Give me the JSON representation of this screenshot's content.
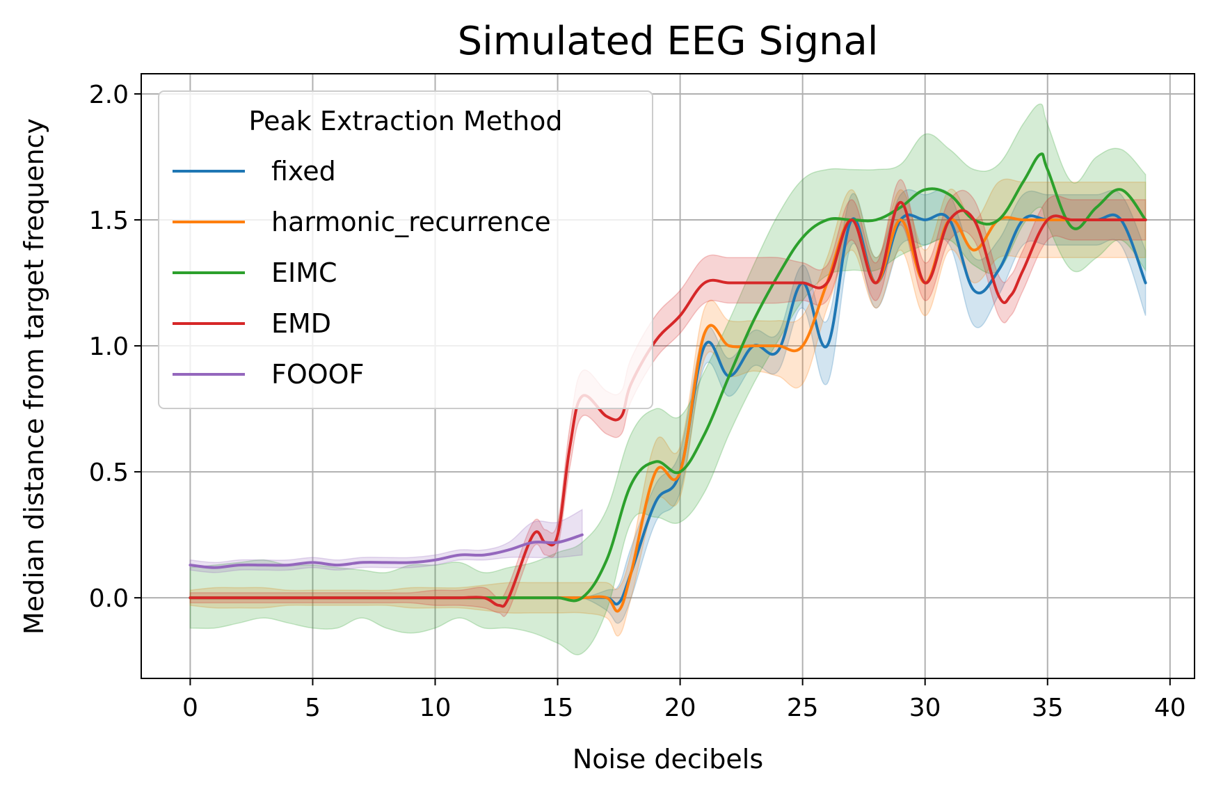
{
  "chart_data": {
    "type": "line",
    "title": "Simulated EEG Signal",
    "xlabel": "Noise decibels",
    "ylabel": "Median distance from target frequency",
    "xlim": [
      -2,
      41
    ],
    "ylim": [
      -0.32,
      2.08
    ],
    "xticks": [
      0,
      5,
      10,
      15,
      20,
      25,
      30,
      35,
      40
    ],
    "yticks": [
      0.0,
      0.5,
      1.0,
      1.5,
      2.0
    ],
    "xtick_labels": [
      "0",
      "5",
      "10",
      "15",
      "20",
      "25",
      "30",
      "35",
      "40"
    ],
    "ytick_labels": [
      "0.0",
      "0.5",
      "1.0",
      "1.5",
      "2.0"
    ],
    "grid": true,
    "legend": {
      "title": "Peak Extraction Method",
      "position": "upper-left"
    },
    "series": [
      {
        "name": "fixed",
        "color": "#1f77b4",
        "x": [
          0,
          1,
          2,
          3,
          4,
          5,
          6,
          7,
          8,
          9,
          10,
          11,
          12,
          13,
          14,
          15,
          16,
          17,
          17.5,
          18,
          19,
          20,
          21,
          22,
          23,
          24,
          25,
          26,
          27,
          28,
          29,
          30,
          31,
          32,
          33,
          34,
          35,
          36,
          37,
          38,
          39
        ],
        "y": [
          0,
          0,
          0,
          0,
          0,
          0,
          0,
          0,
          0,
          0,
          0,
          0,
          0,
          0,
          0,
          0,
          0,
          0,
          -0.02,
          0.1,
          0.38,
          0.5,
          1.0,
          0.88,
          1.0,
          0.98,
          1.25,
          1.0,
          1.5,
          1.25,
          1.5,
          1.5,
          1.5,
          1.22,
          1.3,
          1.5,
          1.5,
          1.5,
          1.5,
          1.5,
          1.25
        ],
        "lower": [
          0,
          0,
          0,
          0,
          0,
          0,
          0,
          0,
          0,
          0,
          0,
          0,
          0,
          0,
          0,
          0,
          0,
          -0.05,
          -0.1,
          0.0,
          0.3,
          0.42,
          0.92,
          0.8,
          0.92,
          0.9,
          1.15,
          0.85,
          1.4,
          1.15,
          1.4,
          1.4,
          1.4,
          1.08,
          1.2,
          1.4,
          1.4,
          1.4,
          1.4,
          1.4,
          1.12
        ],
        "upper": [
          0,
          0,
          0,
          0,
          0,
          0,
          0,
          0,
          0,
          0,
          0,
          0,
          0,
          0,
          0,
          0,
          0,
          0.03,
          0.05,
          0.2,
          0.45,
          0.58,
          1.06,
          0.95,
          1.06,
          1.05,
          1.32,
          1.1,
          1.6,
          1.35,
          1.6,
          1.6,
          1.6,
          1.35,
          1.42,
          1.6,
          1.6,
          1.6,
          1.6,
          1.6,
          1.38
        ]
      },
      {
        "name": "harmonic_recurrence",
        "color": "#ff7f0e",
        "x": [
          0,
          1,
          2,
          3,
          4,
          5,
          6,
          7,
          8,
          9,
          10,
          11,
          12,
          13,
          14,
          15,
          16,
          17,
          17.5,
          18,
          19,
          20,
          21,
          22,
          23,
          24,
          25,
          26,
          27,
          28,
          29,
          30,
          31,
          32,
          33,
          34,
          35,
          36,
          37,
          38,
          39
        ],
        "y": [
          0,
          0,
          0,
          0,
          0,
          0,
          0,
          0,
          0,
          0,
          0,
          0,
          0,
          0,
          0,
          0,
          0,
          0,
          -0.05,
          0.1,
          0.5,
          0.5,
          1.05,
          1.0,
          1.0,
          1.0,
          1.0,
          1.25,
          1.5,
          1.25,
          1.5,
          1.25,
          1.5,
          1.38,
          1.5,
          1.5,
          1.5,
          1.5,
          1.5,
          1.5,
          1.5
        ],
        "lower": [
          -0.03,
          -0.04,
          -0.04,
          -0.04,
          -0.03,
          -0.03,
          -0.03,
          -0.03,
          -0.03,
          -0.04,
          -0.04,
          -0.04,
          -0.05,
          -0.06,
          -0.06,
          -0.06,
          -0.06,
          -0.08,
          -0.15,
          0.0,
          0.38,
          0.4,
          0.95,
          0.88,
          0.9,
          0.88,
          0.85,
          1.15,
          1.38,
          1.15,
          1.38,
          1.12,
          1.38,
          1.25,
          1.35,
          1.35,
          1.35,
          1.35,
          1.35,
          1.35,
          1.35
        ],
        "upper": [
          0.03,
          0.04,
          0.04,
          0.04,
          0.03,
          0.03,
          0.03,
          0.03,
          0.03,
          0.04,
          0.04,
          0.04,
          0.05,
          0.06,
          0.06,
          0.06,
          0.06,
          0.06,
          0.04,
          0.18,
          0.62,
          0.6,
          1.15,
          1.1,
          1.1,
          1.1,
          1.12,
          1.35,
          1.62,
          1.35,
          1.62,
          1.38,
          1.62,
          1.5,
          1.65,
          1.65,
          1.65,
          1.65,
          1.65,
          1.65,
          1.65
        ]
      },
      {
        "name": "EIMC",
        "color": "#2ca02c",
        "x": [
          0,
          1,
          2,
          3,
          4,
          5,
          6,
          7,
          8,
          9,
          10,
          11,
          12,
          13,
          14,
          15,
          16,
          17,
          18,
          19,
          20,
          21,
          22,
          23,
          24,
          25,
          26,
          27,
          28,
          29,
          30,
          31,
          32,
          33,
          34,
          34.7,
          35,
          36,
          37,
          38,
          39
        ],
        "y": [
          0,
          0,
          0,
          0,
          0,
          0,
          0,
          0,
          0,
          0,
          0,
          0,
          0,
          0,
          0,
          0,
          0,
          0.15,
          0.45,
          0.54,
          0.5,
          0.65,
          0.88,
          1.1,
          1.28,
          1.43,
          1.5,
          1.5,
          1.5,
          1.55,
          1.62,
          1.6,
          1.5,
          1.5,
          1.65,
          1.76,
          1.7,
          1.47,
          1.55,
          1.62,
          1.5
        ],
        "lower": [
          -0.12,
          -0.12,
          -0.1,
          -0.08,
          -0.1,
          -0.12,
          -0.12,
          -0.08,
          -0.12,
          -0.14,
          -0.12,
          -0.08,
          -0.12,
          -0.12,
          -0.14,
          -0.18,
          -0.22,
          -0.05,
          0.3,
          0.32,
          0.3,
          0.42,
          0.65,
          0.85,
          1.02,
          1.18,
          1.28,
          1.3,
          1.3,
          1.36,
          1.4,
          1.42,
          1.32,
          1.3,
          1.48,
          1.55,
          1.48,
          1.3,
          1.35,
          1.42,
          1.3
        ],
        "upper": [
          0.12,
          0.13,
          0.14,
          0.15,
          0.13,
          0.13,
          0.12,
          0.11,
          0.1,
          0.13,
          0.13,
          0.14,
          0.1,
          0.12,
          0.14,
          0.18,
          0.22,
          0.35,
          0.65,
          0.75,
          0.72,
          0.9,
          1.1,
          1.32,
          1.52,
          1.66,
          1.7,
          1.7,
          1.7,
          1.72,
          1.84,
          1.78,
          1.7,
          1.72,
          1.88,
          1.96,
          1.88,
          1.65,
          1.75,
          1.78,
          1.68
        ]
      },
      {
        "name": "EMD",
        "color": "#d62728",
        "x": [
          0,
          1,
          2,
          3,
          4,
          5,
          6,
          7,
          8,
          9,
          10,
          11,
          12,
          12.6,
          13,
          14,
          14.5,
          15,
          15.5,
          16,
          17,
          17.6,
          18,
          19,
          20,
          21,
          22,
          23,
          24,
          25,
          26,
          27,
          28,
          29,
          30,
          31,
          32,
          33,
          33.5,
          34,
          35,
          36,
          37,
          38,
          39
        ],
        "y": [
          0,
          0,
          0,
          0,
          0,
          0,
          0,
          0,
          0,
          0,
          0,
          0,
          0,
          -0.03,
          0,
          0.25,
          0.22,
          0.25,
          0.6,
          0.8,
          0.72,
          0.72,
          0.85,
          1.02,
          1.12,
          1.25,
          1.25,
          1.25,
          1.25,
          1.25,
          1.25,
          1.5,
          1.25,
          1.57,
          1.25,
          1.5,
          1.5,
          1.2,
          1.2,
          1.3,
          1.5,
          1.5,
          1.5,
          1.5,
          1.5
        ],
        "lower": [
          -0.02,
          -0.02,
          -0.02,
          -0.02,
          -0.02,
          -0.02,
          -0.02,
          -0.02,
          -0.02,
          -0.02,
          -0.03,
          -0.03,
          -0.04,
          -0.06,
          -0.05,
          0.2,
          0.17,
          0.2,
          0.52,
          0.72,
          0.65,
          0.65,
          0.78,
          0.95,
          1.05,
          1.17,
          1.17,
          1.17,
          1.17,
          1.18,
          1.18,
          1.42,
          1.18,
          1.48,
          1.18,
          1.42,
          1.42,
          1.12,
          1.12,
          1.22,
          1.42,
          1.42,
          1.42,
          1.42,
          1.42
        ],
        "upper": [
          0.02,
          0.02,
          0.02,
          0.02,
          0.02,
          0.02,
          0.02,
          0.02,
          0.02,
          0.02,
          0.03,
          0.03,
          0.04,
          0.0,
          0.05,
          0.3,
          0.27,
          0.3,
          0.68,
          0.9,
          0.82,
          0.82,
          0.95,
          1.12,
          1.22,
          1.35,
          1.35,
          1.35,
          1.35,
          1.33,
          1.32,
          1.58,
          1.33,
          1.66,
          1.33,
          1.58,
          1.58,
          1.28,
          1.28,
          1.38,
          1.58,
          1.58,
          1.58,
          1.58,
          1.58
        ]
      },
      {
        "name": "FOOOF",
        "color": "#9467bd",
        "x": [
          0,
          1,
          2,
          3,
          4,
          5,
          6,
          7,
          8,
          9,
          10,
          11,
          12,
          13,
          14,
          15,
          16
        ],
        "y": [
          0.13,
          0.12,
          0.13,
          0.13,
          0.13,
          0.14,
          0.13,
          0.14,
          0.14,
          0.14,
          0.15,
          0.17,
          0.17,
          0.19,
          0.22,
          0.22,
          0.25
        ],
        "lower": [
          0.11,
          0.1,
          0.11,
          0.11,
          0.11,
          0.12,
          0.11,
          0.12,
          0.12,
          0.12,
          0.13,
          0.15,
          0.15,
          0.16,
          0.16,
          0.16,
          0.17
        ],
        "upper": [
          0.15,
          0.14,
          0.15,
          0.15,
          0.15,
          0.16,
          0.15,
          0.16,
          0.16,
          0.16,
          0.17,
          0.19,
          0.19,
          0.22,
          0.3,
          0.3,
          0.35
        ]
      }
    ]
  }
}
